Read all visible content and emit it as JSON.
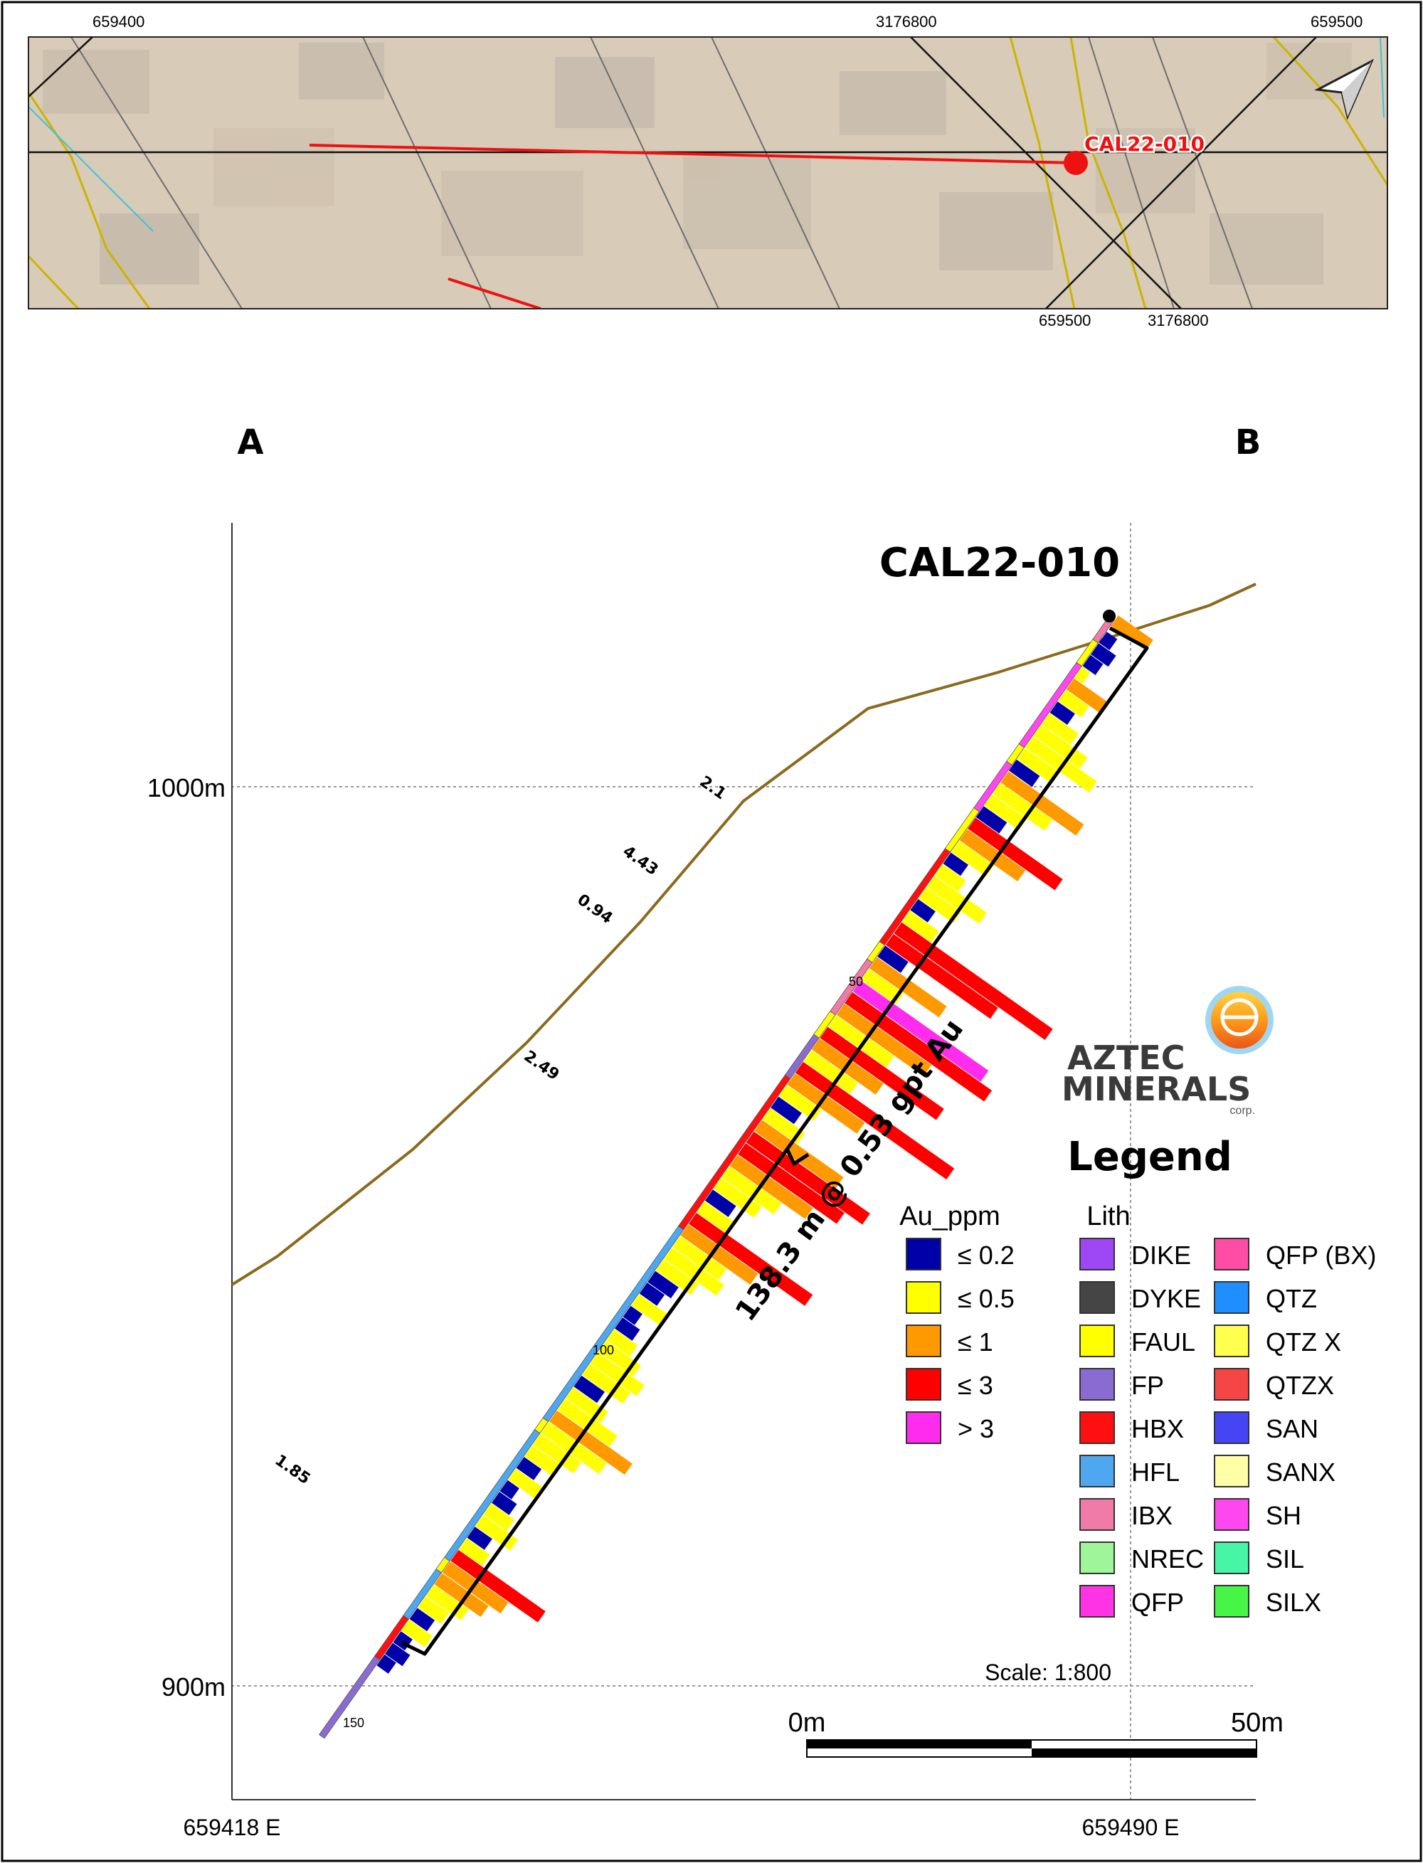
{
  "inset_map": {
    "grid_labels_top": [
      "659400",
      "3176800",
      "659500"
    ],
    "grid_labels_bottom": [
      "659500",
      "3176800"
    ],
    "hole_label": "CAL22-010",
    "north_arrow": "north-arrow-icon"
  },
  "section": {
    "endpoint_a": "A",
    "endpoint_b": "B",
    "hole_label": "CAL22-010",
    "y_axis": {
      "ticks": [
        {
          "label": "1000m",
          "value": 1000
        },
        {
          "label": "900m",
          "value": 900
        }
      ]
    },
    "x_axis": {
      "ticks": [
        {
          "label": "659418 E",
          "value": 659418
        },
        {
          "label": "659490 E",
          "value": 659490
        }
      ]
    },
    "depth_labels": [
      "50",
      "100",
      "150"
    ],
    "assay_callouts": [
      "2.1",
      "4.43",
      "0.94",
      "2.49",
      "1.85"
    ],
    "intercept_label": "138.3 m @ 0.53 gpt Au",
    "scale_text": "Scale: 1:800",
    "scale_bar": {
      "start_label": "0m",
      "end_label": "50m"
    }
  },
  "branding": {
    "company_line1": "AZTEC",
    "company_line2": "MINERALS",
    "company_suffix": "corp."
  },
  "legend": {
    "title": "Legend",
    "au": {
      "title": "Au_ppm",
      "items": [
        {
          "label": "≤ 0.2",
          "color": "#0000a8"
        },
        {
          "label": "≤ 0.5",
          "color": "#ffff00"
        },
        {
          "label": "≤ 1",
          "color": "#ff9900"
        },
        {
          "label": "≤ 3",
          "color": "#ff0000"
        },
        {
          "label": "> 3",
          "color": "#ff2bee"
        }
      ]
    },
    "lith": {
      "title": "Lith",
      "col1": [
        {
          "label": "DIKE",
          "color": "#9e47f5"
        },
        {
          "label": "DYKE",
          "color": "#454545"
        },
        {
          "label": "FAUL",
          "color": "#ffff00"
        },
        {
          "label": "FP",
          "color": "#8a6bd1"
        },
        {
          "label": "HBX",
          "color": "#ff1010"
        },
        {
          "label": "HFL",
          "color": "#4ea8f0"
        },
        {
          "label": "IBX",
          "color": "#f07aa8"
        },
        {
          "label": "NREC",
          "color": "#9ef59a"
        },
        {
          "label": "QFP",
          "color": "#ff33e6"
        }
      ],
      "col2": [
        {
          "label": "QFP (BX)",
          "color": "#ff4da6"
        },
        {
          "label": "QTZ",
          "color": "#1f8fff"
        },
        {
          "label": "QTZ X",
          "color": "#ffff4d"
        },
        {
          "label": "QTZX",
          "color": "#f54545"
        },
        {
          "label": "SAN",
          "color": "#4545f5"
        },
        {
          "label": "SANX",
          "color": "#ffffa6"
        },
        {
          "label": "SH",
          "color": "#ff47f0"
        },
        {
          "label": "SIL",
          "color": "#47f5a6"
        },
        {
          "label": "SILX",
          "color": "#47f547"
        }
      ]
    }
  },
  "colors": {
    "topo": "#8b6a1e",
    "hole_trace": "#ff0000",
    "map_background": "#d8cbb8",
    "contact_lines": "#c9b500"
  }
}
